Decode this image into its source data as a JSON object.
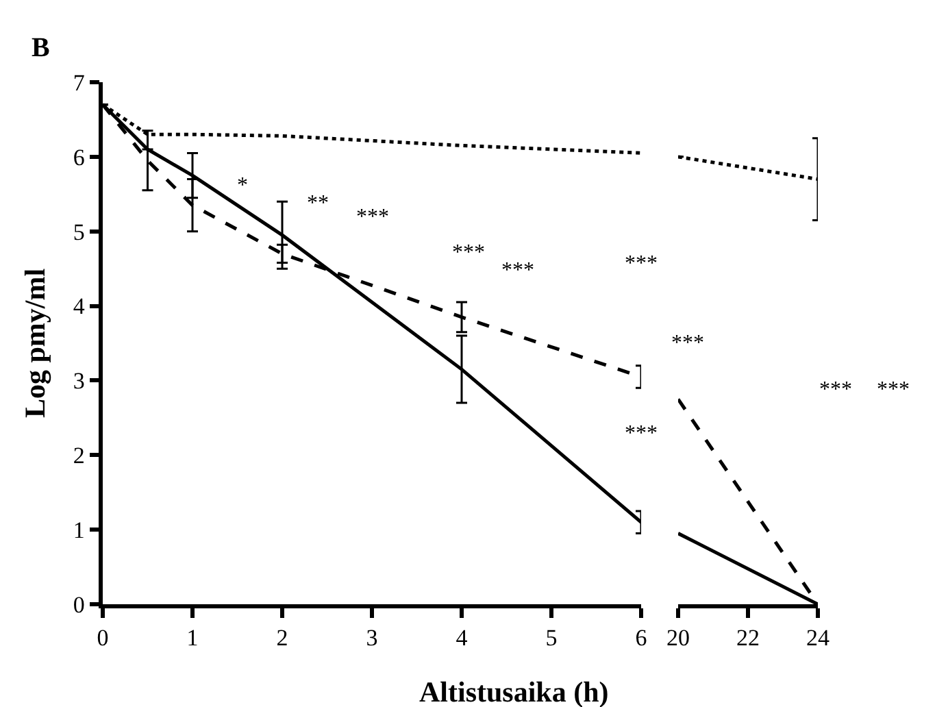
{
  "chart_data": [
    {
      "type": "line",
      "title": "B",
      "ylabel": "Log pmy/ml",
      "xlabel": "Altistusaika (h)",
      "x": [
        0,
        0.5,
        1,
        2,
        4,
        6
      ],
      "xlim": [
        0,
        6
      ],
      "xticks": [
        0,
        1,
        2,
        3,
        4,
        5,
        6
      ],
      "ylim": [
        0,
        7
      ],
      "yticks": [
        0,
        1,
        2,
        3,
        4,
        5,
        6,
        7
      ],
      "marker": "none",
      "series": [
        {
          "color": "#000000",
          "line_style": "solid",
          "values": [
            6.7,
            6.1,
            5.75,
            4.95,
            3.15,
            1.1
          ],
          "errors": [
            null,
            null,
            0.3,
            0.45,
            0.45,
            0.15
          ]
        },
        {
          "color": "#000000",
          "line_style": "dashed",
          "values": [
            6.7,
            5.95,
            5.35,
            4.7,
            3.85,
            3.05
          ],
          "errors": [
            null,
            0.4,
            0.35,
            0.12,
            0.2,
            0.15
          ]
        },
        {
          "color": "#000000",
          "line_style": "dotted",
          "values": [
            6.7,
            6.3,
            6.3,
            6.28,
            6.15,
            6.05
          ]
        }
      ],
      "annotations": [
        "*",
        "**",
        "***",
        "***",
        "***"
      ]
    },
    {
      "type": "line",
      "x": [
        20,
        24
      ],
      "xlim": [
        20,
        24
      ],
      "xticks": [
        20,
        22,
        24
      ],
      "ylim": [
        0,
        7
      ],
      "yticks": [
        0,
        1,
        2,
        3,
        4,
        5,
        6,
        7
      ],
      "tick_labels": "x",
      "marker": "none",
      "series": [
        {
          "color": "#000000",
          "line_style": "solid",
          "values": [
            0.95,
            0
          ]
        },
        {
          "color": "#000000",
          "line_style": "dashed",
          "values": [
            2.75,
            0
          ]
        },
        {
          "color": "#000000",
          "line_style": "dotted",
          "values": [
            6.0,
            5.7
          ],
          "errors": [
            null,
            0.55
          ]
        }
      ],
      "annotations": [
        "***",
        "***",
        "***",
        "***",
        "***"
      ]
    }
  ]
}
